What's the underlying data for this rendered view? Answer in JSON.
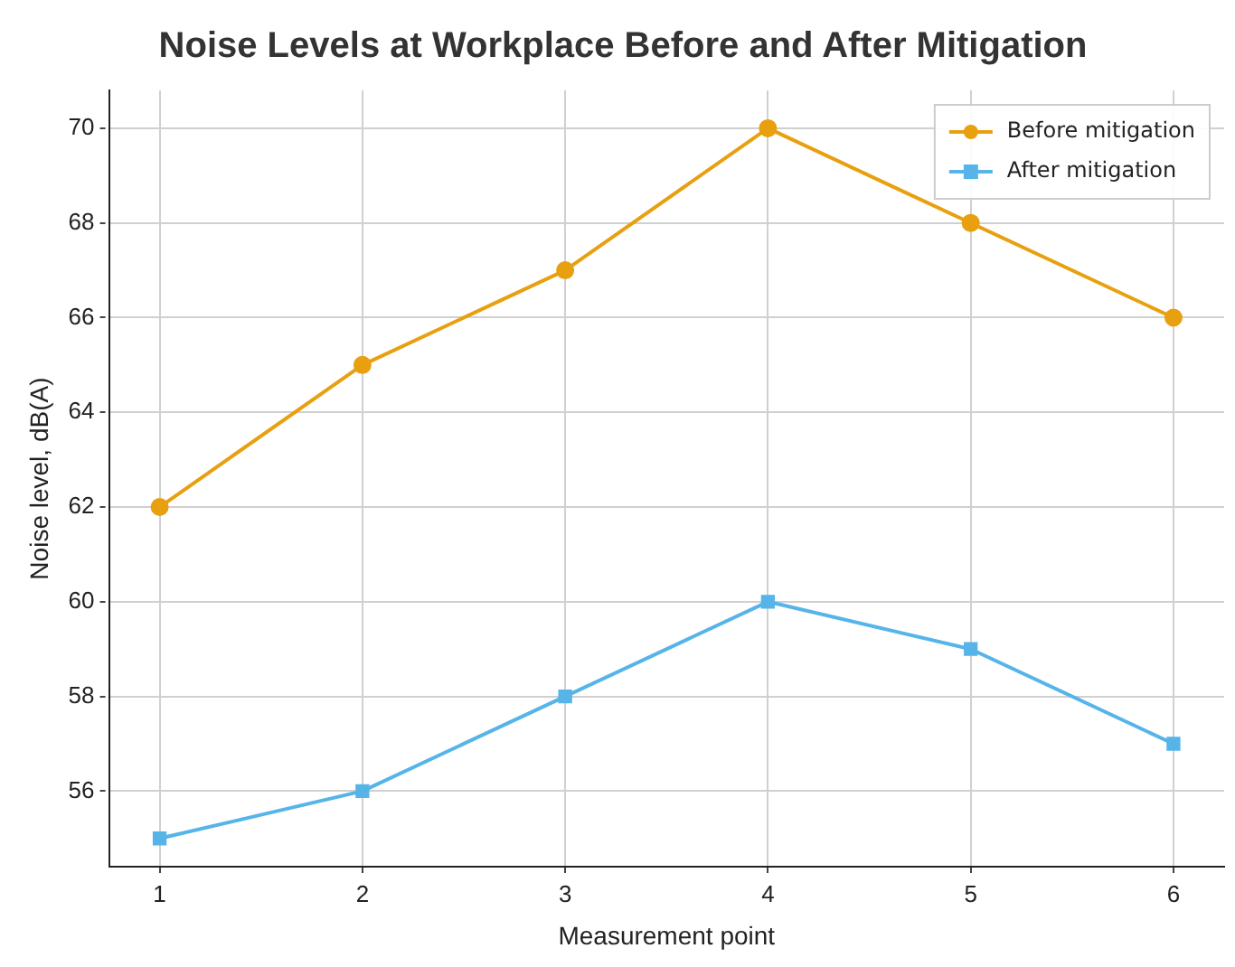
{
  "chart_data": {
    "type": "line",
    "title": "Noise Levels at Workplace Before and After Mitigation",
    "xlabel": "Measurement point",
    "ylabel": "Noise level, dB(A)",
    "x": [
      1,
      2,
      3,
      4,
      5,
      6
    ],
    "series": [
      {
        "name": "Before mitigation",
        "color": "#e8a010",
        "marker": "circle",
        "values": [
          62,
          65,
          67,
          70,
          68,
          66
        ]
      },
      {
        "name": "After mitigation",
        "color": "#56b4e9",
        "marker": "square",
        "values": [
          55,
          56,
          58,
          60,
          59,
          57
        ]
      }
    ],
    "xlim": [
      0.75,
      6.25
    ],
    "xticks": [
      1,
      2,
      3,
      4,
      5,
      6
    ],
    "ylim": [
      54.4,
      70.8
    ],
    "yticks": [
      56,
      58,
      60,
      62,
      64,
      66,
      68,
      70
    ],
    "grid": true,
    "line_style": "solid",
    "legend": "top right"
  }
}
